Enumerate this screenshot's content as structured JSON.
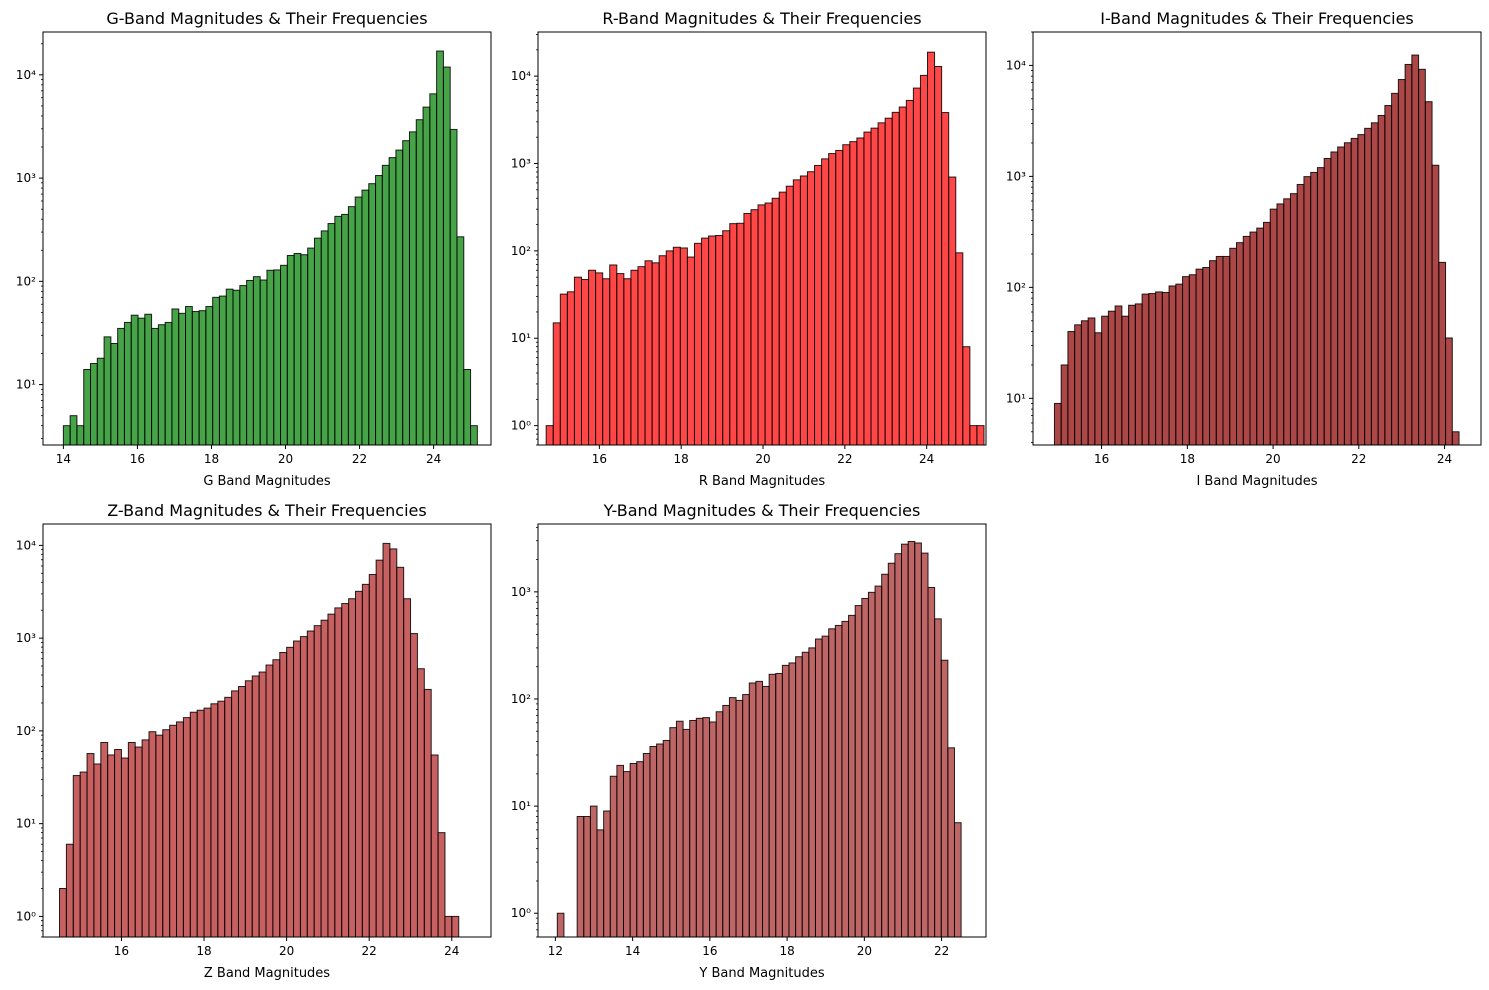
{
  "chart_data": [
    {
      "type": "bar",
      "title": "G-Band Magnitudes & Their Frequencies",
      "xlabel": "G Band Magnitudes",
      "ylabel": "",
      "yscale": "log",
      "xlim": [
        13.45,
        25.55
      ],
      "ylim": [
        2.6,
        26000
      ],
      "xticks": [
        14,
        16,
        18,
        20,
        22,
        24
      ],
      "yticks": [
        1,
        10,
        100,
        1000,
        10000
      ],
      "color": "#008000",
      "bin_start": 14.0,
      "bin_width": 0.1833,
      "values": [
        4,
        5,
        4,
        14,
        16,
        18,
        29,
        25,
        35,
        40,
        47,
        44,
        48,
        35,
        38,
        40,
        54,
        49,
        57,
        51,
        52,
        57,
        70,
        72,
        84,
        82,
        91,
        102,
        111,
        103,
        128,
        129,
        143,
        178,
        186,
        181,
        210,
        262,
        308,
        363,
        426,
        445,
        529,
        655,
        765,
        883,
        1059,
        1329,
        1579,
        1867,
        2303,
        2805,
        3677,
        4870,
        6547,
        17000,
        11900,
        2960,
        270,
        14,
        4
      ]
    },
    {
      "type": "bar",
      "title": "R-Band Magnitudes & Their Frequencies",
      "xlabel": "R Band Magnitudes",
      "ylabel": "",
      "yscale": "log",
      "xlim": [
        14.5,
        25.45
      ],
      "ylim": [
        0.6,
        32000
      ],
      "xticks": [
        16,
        18,
        20,
        22,
        24
      ],
      "yticks": [
        1,
        10,
        100,
        1000,
        10000
      ],
      "color": "#ff0000",
      "bin_start": 14.7,
      "bin_width": 0.1726,
      "values": [
        1,
        15,
        32,
        34,
        50,
        47,
        60,
        56,
        48,
        69,
        55,
        48,
        60,
        66,
        77,
        73,
        88,
        100,
        110,
        108,
        85,
        122,
        140,
        148,
        150,
        170,
        205,
        207,
        268,
        296,
        336,
        353,
        400,
        470,
        550,
        650,
        720,
        805,
        950,
        1130,
        1300,
        1410,
        1640,
        1780,
        1960,
        2290,
        2540,
        2920,
        3300,
        3850,
        4430,
        5270,
        7300,
        10200,
        18800,
        12900,
        3830,
        700,
        95,
        8,
        1,
        1
      ]
    },
    {
      "type": "bar",
      "title": "I-Band Magnitudes & Their Frequencies",
      "xlabel": "I Band Magnitudes",
      "ylabel": "",
      "yscale": "log",
      "xlim": [
        14.4,
        24.85
      ],
      "ylim": [
        3.8,
        20000
      ],
      "xticks": [
        16,
        18,
        20,
        22,
        24
      ],
      "yticks": [
        10,
        100,
        1000,
        10000
      ],
      "color": "#8b0000",
      "bin_start": 14.9,
      "bin_width": 0.1573,
      "values": [
        9,
        20,
        40,
        46,
        50,
        53,
        39,
        55,
        61,
        68,
        55,
        69,
        71,
        87,
        88,
        91,
        90,
        103,
        107,
        125,
        130,
        146,
        151,
        174,
        190,
        190,
        225,
        253,
        288,
        315,
        342,
        385,
        507,
        565,
        628,
        699,
        846,
        995,
        1086,
        1200,
        1450,
        1660,
        1840,
        2010,
        2200,
        2380,
        2710,
        3040,
        3540,
        4350,
        5600,
        7460,
        10200,
        12400,
        9220,
        4710,
        1260,
        168,
        35,
        5
      ]
    },
    {
      "type": "bar",
      "title": "Z-Band Magnitudes & Their Frequencies",
      "xlabel": "Z Band Magnitudes",
      "ylabel": "",
      "yscale": "log",
      "xlim": [
        14.1,
        24.95
      ],
      "ylim": [
        0.6,
        17000
      ],
      "xticks": [
        16,
        18,
        20,
        22,
        24
      ],
      "yticks": [
        1,
        10,
        100,
        1000,
        10000
      ],
      "color": "#b22222",
      "bin_start": 14.5,
      "bin_width": 0.1667,
      "values": [
        2,
        6,
        33,
        36,
        57,
        44,
        75,
        55,
        63,
        51,
        75,
        67,
        80,
        98,
        90,
        103,
        115,
        125,
        139,
        159,
        167,
        176,
        196,
        209,
        230,
        270,
        301,
        347,
        391,
        431,
        513,
        585,
        700,
        796,
        931,
        1039,
        1193,
        1363,
        1561,
        1815,
        2119,
        2360,
        2660,
        3196,
        3800,
        4850,
        6930,
        10500,
        9160,
        5800,
        2660,
        1120,
        468,
        280,
        55,
        8,
        1,
        1
      ]
    },
    {
      "type": "bar",
      "title": "Y-Band Magnitudes & Their Frequencies",
      "xlabel": "Y Band Magnitudes",
      "ylabel": "",
      "yscale": "log",
      "xlim": [
        11.55,
        23.15
      ],
      "ylim": [
        0.6,
        4300
      ],
      "xticks": [
        12,
        14,
        16,
        18,
        20,
        22
      ],
      "yticks": [
        1,
        10,
        100,
        1000
      ],
      "color": "#a52a2a",
      "bin_start": 12.05,
      "bin_width": 0.1714,
      "values": [
        1,
        0,
        0,
        8,
        8,
        10,
        6,
        9,
        19,
        24,
        21,
        25,
        26,
        31,
        36,
        38,
        41,
        54,
        62,
        52,
        63,
        66,
        67,
        61,
        76,
        87,
        103,
        97,
        110,
        141,
        146,
        131,
        170,
        173,
        206,
        217,
        248,
        273,
        300,
        363,
        386,
        452,
        486,
        530,
        603,
        745,
        868,
        990,
        1132,
        1460,
        1850,
        2272,
        2787,
        2954,
        2860,
        2300,
        1100,
        560,
        230,
        35,
        7
      ]
    }
  ]
}
